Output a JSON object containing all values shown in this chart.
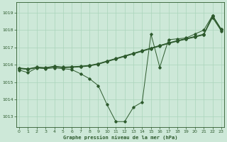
{
  "title": "Graphe pression niveau de la mer (hPa)",
  "bg_color": "#cde8d8",
  "grid_color": "#aad4bb",
  "line_color": "#2d5a2d",
  "ylim": [
    1012.4,
    1019.6
  ],
  "xlim": [
    -0.3,
    23.3
  ],
  "yticks": [
    1013,
    1014,
    1015,
    1016,
    1017,
    1018,
    1019
  ],
  "xticks": [
    0,
    1,
    2,
    3,
    4,
    5,
    6,
    7,
    8,
    9,
    10,
    11,
    12,
    13,
    14,
    15,
    16,
    17,
    18,
    19,
    20,
    21,
    22,
    23
  ],
  "straight_lines": [
    [
      1015.8,
      1015.75,
      1015.85,
      1015.82,
      1015.9,
      1015.85,
      1015.87,
      1015.9,
      1015.95,
      1016.05,
      1016.2,
      1016.35,
      1016.5,
      1016.65,
      1016.8,
      1016.95,
      1017.1,
      1017.25,
      1017.38,
      1017.5,
      1017.62,
      1017.75,
      1018.85,
      1018.05
    ],
    [
      1015.82,
      1015.77,
      1015.87,
      1015.84,
      1015.92,
      1015.87,
      1015.89,
      1015.92,
      1015.97,
      1016.07,
      1016.22,
      1016.37,
      1016.52,
      1016.67,
      1016.82,
      1016.97,
      1017.12,
      1017.27,
      1017.4,
      1017.52,
      1017.64,
      1017.77,
      1018.78,
      1018.0
    ],
    [
      1015.78,
      1015.73,
      1015.83,
      1015.8,
      1015.88,
      1015.83,
      1015.85,
      1015.88,
      1015.93,
      1016.03,
      1016.18,
      1016.33,
      1016.48,
      1016.63,
      1016.78,
      1016.93,
      1017.08,
      1017.23,
      1017.36,
      1017.48,
      1017.6,
      1017.73,
      1018.73,
      1017.95
    ]
  ],
  "curved_line": [
    1015.7,
    1015.55,
    1015.82,
    1015.78,
    1015.82,
    1015.78,
    1015.72,
    1015.48,
    1015.2,
    1014.8,
    1013.7,
    1012.72,
    1012.72,
    1013.55,
    1013.85,
    1017.78,
    1015.85,
    1017.45,
    1017.5,
    1017.55,
    1017.78,
    1018.0,
    1018.85,
    1018.05
  ]
}
